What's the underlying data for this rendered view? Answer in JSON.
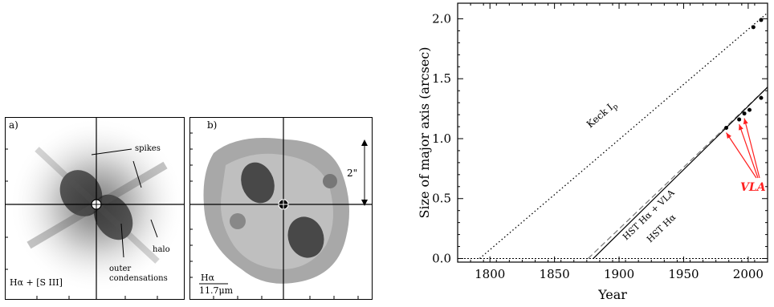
{
  "panel_a": {
    "label": "a)",
    "caption": "Hα + [S III]",
    "annotations": [
      "spikes",
      "halo",
      "outer",
      "condensations"
    ]
  },
  "panel_b": {
    "label": "b)",
    "caption_line1": "Hα",
    "caption_line2": "11.7μm",
    "scale_label": "2\""
  },
  "chart_data": {
    "type": "line",
    "xlabel": "Year",
    "ylabel": "Size of major axis (arcsec)",
    "xlim": [
      1775,
      2015
    ],
    "ylim": [
      -0.03,
      2.13
    ],
    "x_ticks": [
      1800,
      1850,
      1900,
      1950,
      2000
    ],
    "y_ticks": [
      0.0,
      0.5,
      1.0,
      1.5,
      2.0
    ],
    "x_tick_labels": [
      "1800",
      "1850",
      "1900",
      "1950",
      "2000"
    ],
    "y_tick_labels": [
      "0.0",
      "0.5",
      "1.0",
      "1.5",
      "2.0"
    ],
    "series": [
      {
        "name": "Keek I_p",
        "style": "dotted",
        "x": [
          1792,
          2015
        ],
        "y": [
          0.0,
          2.05
        ]
      },
      {
        "name": "HST Hα + VLA",
        "style": "dashed",
        "x": [
          1876,
          2015
        ],
        "y": [
          0.0,
          1.43
        ]
      },
      {
        "name": "HST Hα",
        "style": "solid",
        "x": [
          1880,
          2015
        ],
        "y": [
          0.0,
          1.43
        ]
      }
    ],
    "points": [
      {
        "x": 1983,
        "y": 1.09
      },
      {
        "x": 1993,
        "y": 1.16
      },
      {
        "x": 1997,
        "y": 1.21
      },
      {
        "x": 2001,
        "y": 1.24
      },
      {
        "x": 2010,
        "y": 1.34
      },
      {
        "x": 2004,
        "y": 1.93
      },
      {
        "x": 2010,
        "y": 1.99
      }
    ],
    "annotation": {
      "text": "VLA",
      "color": "#ff2020"
    },
    "line_labels": {
      "keck": "Keck",
      "keck_sub": "p",
      "hst_vla": "HST Hα + VLA",
      "hst": "HST Hα"
    }
  }
}
